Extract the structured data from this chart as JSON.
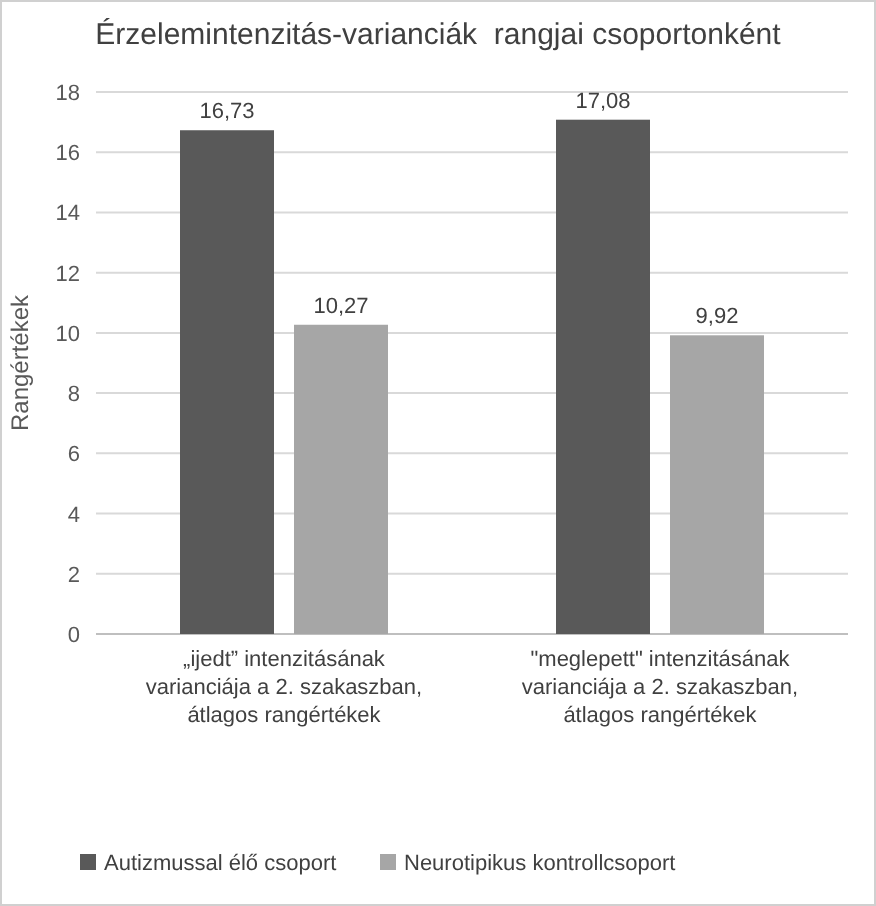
{
  "chart_data": {
    "type": "bar",
    "title": "Érzelemintenzitás-varianciák  rangjai csoportonként",
    "ylabel": "Rangértékek",
    "categories": [
      "„ijedt” intenzitásának varianciája a 2. szakaszban, átlagos rangértékek",
      "\"meglepett\" intenzitásának varianciája a 2. szakaszban, átlagos rangértékek"
    ],
    "series": [
      {
        "name": "Autizmussal élő csoport",
        "color": "#595959",
        "values": [
          16.73,
          17.08
        ],
        "value_labels": [
          "16,73",
          "17,08"
        ]
      },
      {
        "name": "Neurotipikus kontrollcsoport",
        "color": "#a6a6a6",
        "values": [
          10.27,
          9.92
        ],
        "value_labels": [
          "10,27",
          "9,92"
        ]
      }
    ],
    "ylim": [
      0,
      18
    ],
    "yticks": [
      0,
      2,
      4,
      6,
      8,
      10,
      12,
      14,
      16,
      18
    ],
    "grid": "y",
    "legend": "bottom"
  }
}
